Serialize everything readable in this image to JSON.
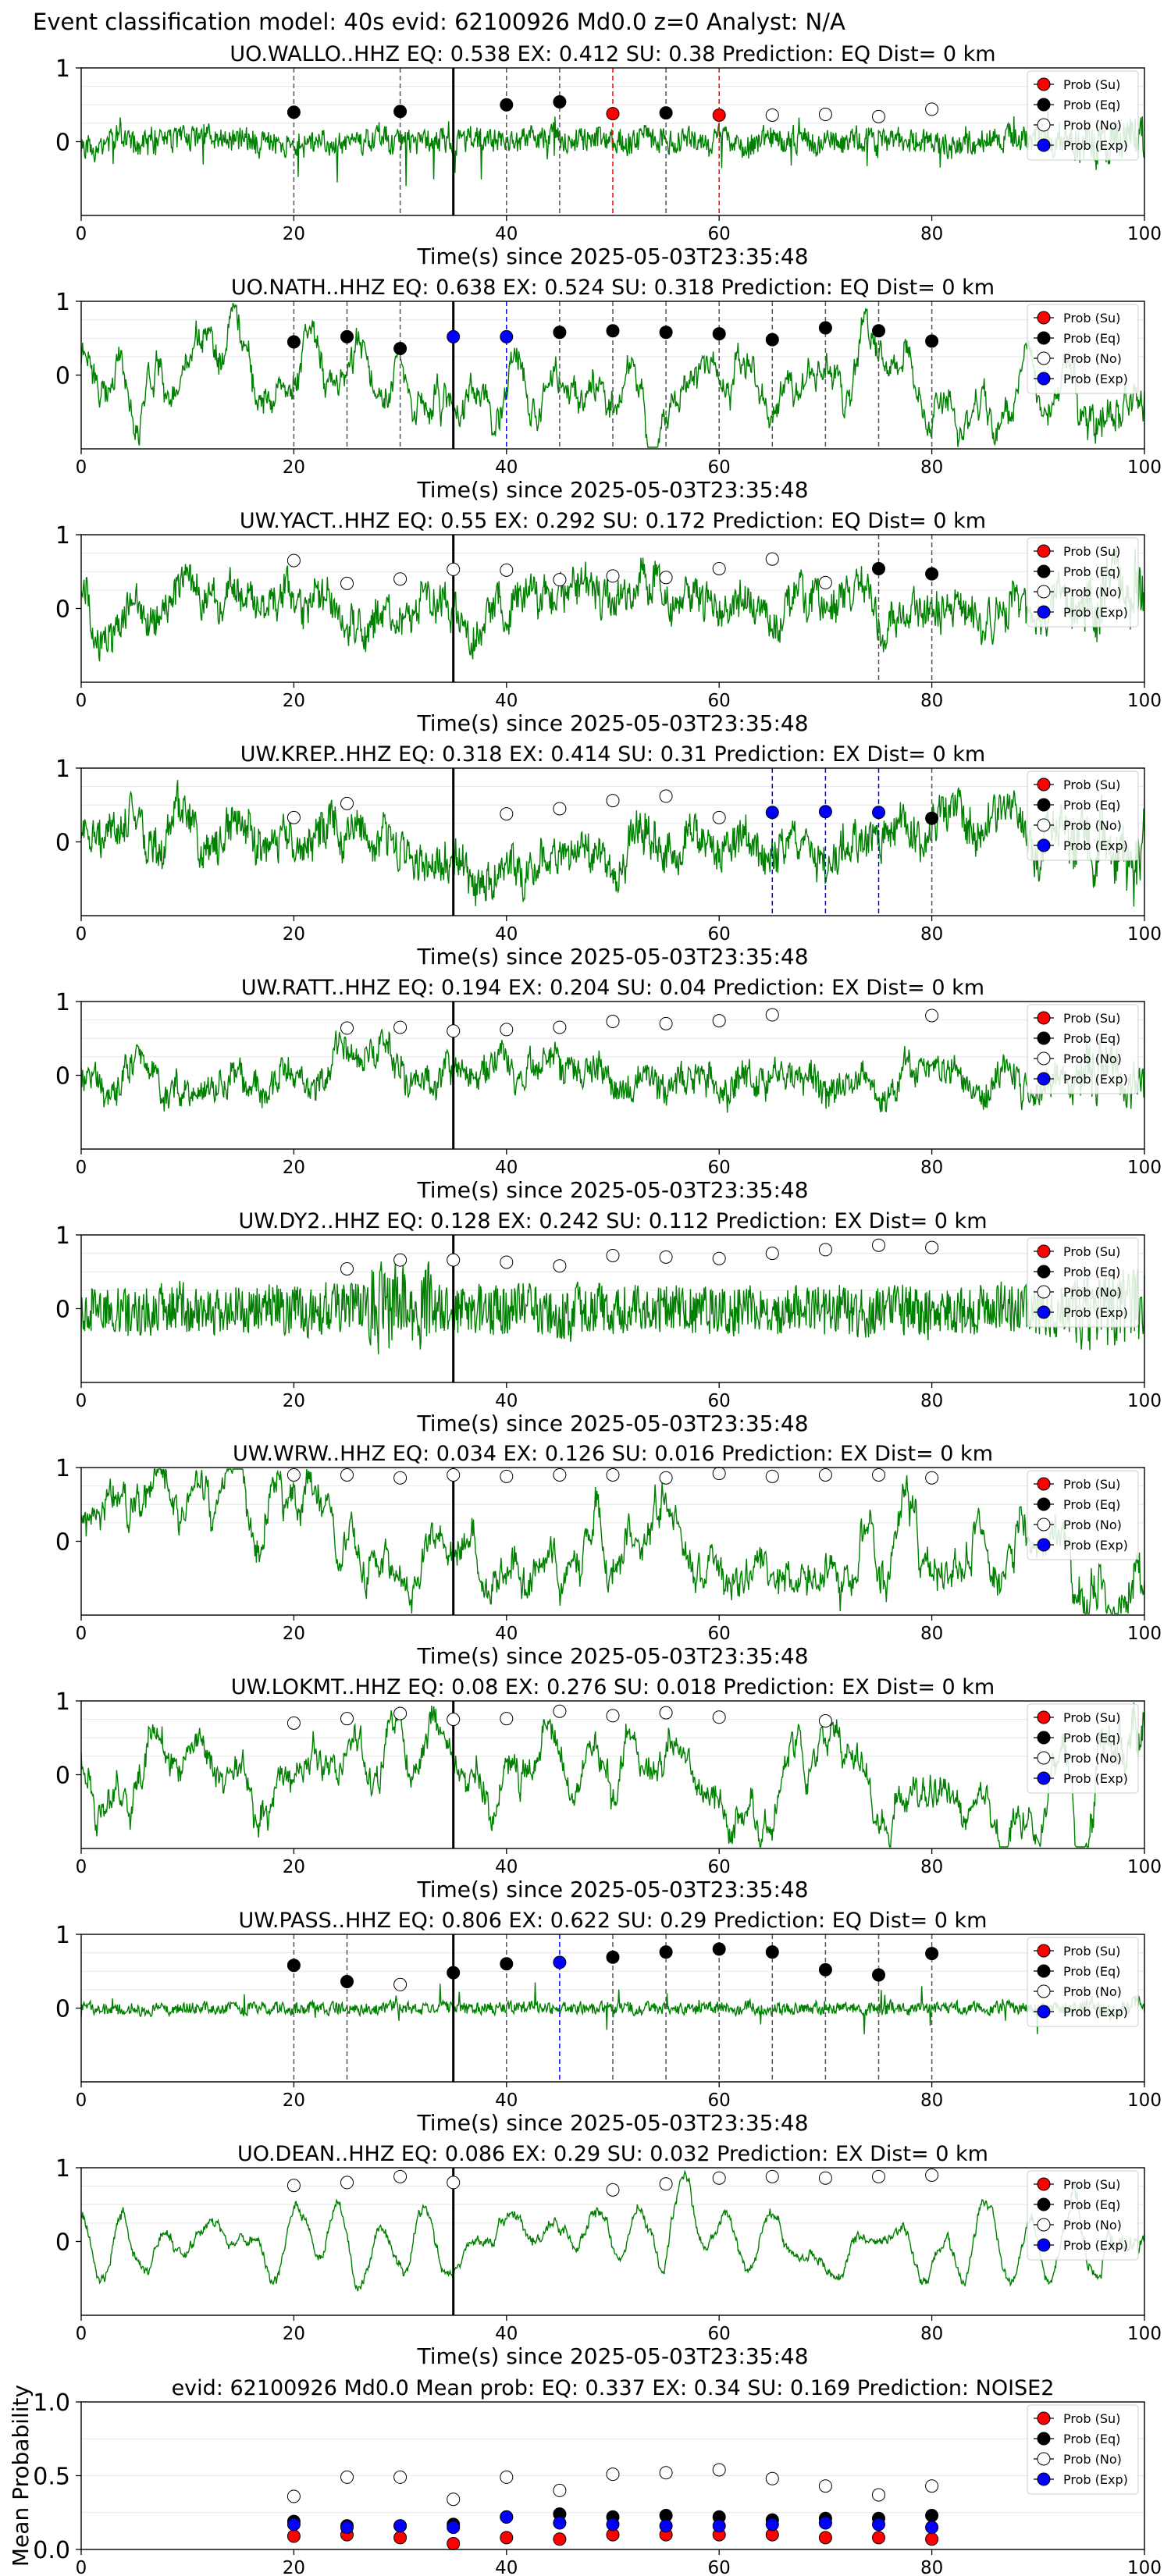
{
  "figure": {
    "suptitle": "Event classification model: 40s evid: 62100926 Md0.0 z=0 Analyst: N/A",
    "xlabel": "Time(s) since 2025-05-03T23:35:48",
    "legend": [
      "Prob (Su)",
      "Prob (Eq)",
      "Prob (No)",
      "Prob (Exp)"
    ],
    "colors": {
      "waveform": "#008000",
      "su": "#ff0000",
      "eq": "#000000",
      "no": "#ffffff",
      "exp": "#0000ff",
      "pick_line": "#000000",
      "eq_dash": "#555555",
      "su_dash": "#ff0000",
      "exp_dash": "#0000ff"
    }
  },
  "chart_data": [
    {
      "type": "line",
      "title": "UO.WALLO..HHZ   EQ: 0.538  EX: 0.412  SU: 0.38   Prediction: EQ    Dist= 0 km",
      "xlim": [
        0,
        100
      ],
      "ylim": [
        -1,
        1
      ],
      "xticks": [
        0,
        20,
        40,
        60,
        80,
        100
      ],
      "yticks": [
        0,
        1
      ],
      "pick_time": 35,
      "waveform": {
        "seed": 11,
        "style": "impulsive",
        "amp": 0.32
      },
      "markers": [
        {
          "t": 20,
          "p": 0.4,
          "cls": "eq"
        },
        {
          "t": 30,
          "p": 0.41,
          "cls": "eq"
        },
        {
          "t": 40,
          "p": 0.5,
          "cls": "eq"
        },
        {
          "t": 45,
          "p": 0.54,
          "cls": "eq"
        },
        {
          "t": 50,
          "p": 0.38,
          "cls": "su"
        },
        {
          "t": 55,
          "p": 0.39,
          "cls": "eq"
        },
        {
          "t": 60,
          "p": 0.36,
          "cls": "su"
        },
        {
          "t": 65,
          "p": 0.36,
          "cls": "no"
        },
        {
          "t": 70,
          "p": 0.37,
          "cls": "no"
        },
        {
          "t": 75,
          "p": 0.34,
          "cls": "no"
        },
        {
          "t": 80,
          "p": 0.44,
          "cls": "no"
        }
      ]
    },
    {
      "type": "line",
      "title": "UO.NATH..HHZ   EQ: 0.638  EX: 0.524  SU: 0.318   Prediction: EQ    Dist= 0 km",
      "xlim": [
        0,
        100
      ],
      "ylim": [
        -1,
        1
      ],
      "xticks": [
        0,
        20,
        40,
        60,
        80,
        100
      ],
      "yticks": [
        0,
        1
      ],
      "pick_time": 35,
      "waveform": {
        "seed": 22,
        "style": "wavy",
        "amp": 0.55
      },
      "markers": [
        {
          "t": 20,
          "p": 0.45,
          "cls": "eq"
        },
        {
          "t": 25,
          "p": 0.52,
          "cls": "eq"
        },
        {
          "t": 30,
          "p": 0.36,
          "cls": "eq"
        },
        {
          "t": 35,
          "p": 0.52,
          "cls": "exp"
        },
        {
          "t": 40,
          "p": 0.52,
          "cls": "exp"
        },
        {
          "t": 45,
          "p": 0.58,
          "cls": "eq"
        },
        {
          "t": 50,
          "p": 0.6,
          "cls": "eq"
        },
        {
          "t": 55,
          "p": 0.58,
          "cls": "eq"
        },
        {
          "t": 60,
          "p": 0.56,
          "cls": "eq"
        },
        {
          "t": 65,
          "p": 0.48,
          "cls": "eq"
        },
        {
          "t": 70,
          "p": 0.64,
          "cls": "eq"
        },
        {
          "t": 75,
          "p": 0.6,
          "cls": "eq"
        },
        {
          "t": 80,
          "p": 0.46,
          "cls": "eq"
        }
      ]
    },
    {
      "type": "line",
      "title": "UW.YACT..HHZ   EQ: 0.55  EX: 0.292  SU: 0.172   Prediction: EQ    Dist= 0 km",
      "xlim": [
        0,
        100
      ],
      "ylim": [
        -1,
        1
      ],
      "xticks": [
        0,
        20,
        40,
        60,
        80,
        100
      ],
      "yticks": [
        0,
        1
      ],
      "pick_time": 35,
      "waveform": {
        "seed": 33,
        "style": "mixed",
        "amp": 0.5
      },
      "markers": [
        {
          "t": 20,
          "p": 0.65,
          "cls": "no"
        },
        {
          "t": 25,
          "p": 0.34,
          "cls": "no"
        },
        {
          "t": 30,
          "p": 0.4,
          "cls": "no"
        },
        {
          "t": 35,
          "p": 0.53,
          "cls": "no"
        },
        {
          "t": 40,
          "p": 0.52,
          "cls": "no"
        },
        {
          "t": 45,
          "p": 0.39,
          "cls": "no"
        },
        {
          "t": 50,
          "p": 0.44,
          "cls": "no"
        },
        {
          "t": 55,
          "p": 0.42,
          "cls": "no"
        },
        {
          "t": 60,
          "p": 0.54,
          "cls": "no"
        },
        {
          "t": 65,
          "p": 0.67,
          "cls": "no"
        },
        {
          "t": 70,
          "p": 0.35,
          "cls": "no"
        },
        {
          "t": 75,
          "p": 0.54,
          "cls": "eq"
        },
        {
          "t": 80,
          "p": 0.47,
          "cls": "eq"
        }
      ]
    },
    {
      "type": "line",
      "title": "UW.KREP..HHZ   EQ: 0.318  EX: 0.414  SU: 0.31   Prediction: EX    Dist= 0 km",
      "xlim": [
        0,
        100
      ],
      "ylim": [
        -1,
        1
      ],
      "xticks": [
        0,
        20,
        40,
        60,
        80,
        100
      ],
      "yticks": [
        0,
        1
      ],
      "pick_time": 35,
      "waveform": {
        "seed": 44,
        "style": "mixed",
        "amp": 0.55
      },
      "markers": [
        {
          "t": 20,
          "p": 0.33,
          "cls": "no"
        },
        {
          "t": 25,
          "p": 0.52,
          "cls": "no"
        },
        {
          "t": 40,
          "p": 0.38,
          "cls": "no"
        },
        {
          "t": 45,
          "p": 0.45,
          "cls": "no"
        },
        {
          "t": 50,
          "p": 0.56,
          "cls": "no"
        },
        {
          "t": 55,
          "p": 0.62,
          "cls": "no"
        },
        {
          "t": 60,
          "p": 0.33,
          "cls": "no"
        },
        {
          "t": 65,
          "p": 0.4,
          "cls": "exp"
        },
        {
          "t": 70,
          "p": 0.41,
          "cls": "exp"
        },
        {
          "t": 75,
          "p": 0.4,
          "cls": "exp"
        },
        {
          "t": 80,
          "p": 0.32,
          "cls": "eq"
        }
      ]
    },
    {
      "type": "line",
      "title": "UW.RATT..HHZ   EQ: 0.194  EX: 0.204  SU: 0.04   Prediction: EX    Dist= 0 km",
      "xlim": [
        0,
        100
      ],
      "ylim": [
        -1,
        1
      ],
      "xticks": [
        0,
        20,
        40,
        60,
        80,
        100
      ],
      "yticks": [
        0,
        1
      ],
      "pick_time": 35,
      "waveform": {
        "seed": 55,
        "style": "mixed",
        "amp": 0.4
      },
      "markers": [
        {
          "t": 25,
          "p": 0.64,
          "cls": "no"
        },
        {
          "t": 30,
          "p": 0.65,
          "cls": "no"
        },
        {
          "t": 35,
          "p": 0.6,
          "cls": "no"
        },
        {
          "t": 40,
          "p": 0.62,
          "cls": "no"
        },
        {
          "t": 45,
          "p": 0.65,
          "cls": "no"
        },
        {
          "t": 50,
          "p": 0.73,
          "cls": "no"
        },
        {
          "t": 55,
          "p": 0.7,
          "cls": "no"
        },
        {
          "t": 60,
          "p": 0.74,
          "cls": "no"
        },
        {
          "t": 65,
          "p": 0.82,
          "cls": "no"
        },
        {
          "t": 80,
          "p": 0.81,
          "cls": "no"
        }
      ]
    },
    {
      "type": "line",
      "title": "UW.DY2..HHZ   EQ: 0.128  EX: 0.242  SU: 0.112   Prediction: EX    Dist= 0 km",
      "xlim": [
        0,
        100
      ],
      "ylim": [
        -1,
        1
      ],
      "xticks": [
        0,
        20,
        40,
        60,
        80,
        100
      ],
      "yticks": [
        0,
        1
      ],
      "pick_time": 35,
      "waveform": {
        "seed": 66,
        "style": "noisy",
        "amp": 0.42
      },
      "markers": [
        {
          "t": 25,
          "p": 0.54,
          "cls": "no"
        },
        {
          "t": 30,
          "p": 0.66,
          "cls": "no"
        },
        {
          "t": 35,
          "p": 0.66,
          "cls": "no"
        },
        {
          "t": 40,
          "p": 0.63,
          "cls": "no"
        },
        {
          "t": 45,
          "p": 0.58,
          "cls": "no"
        },
        {
          "t": 50,
          "p": 0.72,
          "cls": "no"
        },
        {
          "t": 55,
          "p": 0.7,
          "cls": "no"
        },
        {
          "t": 60,
          "p": 0.68,
          "cls": "no"
        },
        {
          "t": 65,
          "p": 0.75,
          "cls": "no"
        },
        {
          "t": 70,
          "p": 0.8,
          "cls": "no"
        },
        {
          "t": 75,
          "p": 0.86,
          "cls": "no"
        },
        {
          "t": 80,
          "p": 0.83,
          "cls": "no"
        }
      ]
    },
    {
      "type": "line",
      "title": "UW.WRW..HHZ   EQ: 0.034  EX: 0.126  SU: 0.016   Prediction: EX    Dist= 0 km",
      "xlim": [
        0,
        100
      ],
      "ylim": [
        -1,
        1
      ],
      "xticks": [
        0,
        20,
        40,
        60,
        80,
        100
      ],
      "yticks": [
        0,
        1
      ],
      "pick_time": 35,
      "waveform": {
        "seed": 77,
        "style": "wavy",
        "amp": 0.62
      },
      "markers": [
        {
          "t": 20,
          "p": 0.9,
          "cls": "no"
        },
        {
          "t": 25,
          "p": 0.9,
          "cls": "no"
        },
        {
          "t": 30,
          "p": 0.86,
          "cls": "no"
        },
        {
          "t": 35,
          "p": 0.9,
          "cls": "no"
        },
        {
          "t": 40,
          "p": 0.88,
          "cls": "no"
        },
        {
          "t": 45,
          "p": 0.9,
          "cls": "no"
        },
        {
          "t": 50,
          "p": 0.9,
          "cls": "no"
        },
        {
          "t": 55,
          "p": 0.86,
          "cls": "no"
        },
        {
          "t": 60,
          "p": 0.92,
          "cls": "no"
        },
        {
          "t": 65,
          "p": 0.88,
          "cls": "no"
        },
        {
          "t": 70,
          "p": 0.9,
          "cls": "no"
        },
        {
          "t": 75,
          "p": 0.9,
          "cls": "no"
        },
        {
          "t": 80,
          "p": 0.86,
          "cls": "no"
        }
      ]
    },
    {
      "type": "line",
      "title": "UW.LOKMT..HHZ   EQ: 0.08  EX: 0.276  SU: 0.018   Prediction: EX    Dist= 0 km",
      "xlim": [
        0,
        100
      ],
      "ylim": [
        -1,
        1
      ],
      "xticks": [
        0,
        20,
        40,
        60,
        80,
        100
      ],
      "yticks": [
        0,
        1
      ],
      "pick_time": 35,
      "waveform": {
        "seed": 88,
        "style": "wavy",
        "amp": 0.55
      },
      "markers": [
        {
          "t": 20,
          "p": 0.7,
          "cls": "no"
        },
        {
          "t": 25,
          "p": 0.76,
          "cls": "no"
        },
        {
          "t": 30,
          "p": 0.83,
          "cls": "no"
        },
        {
          "t": 35,
          "p": 0.75,
          "cls": "no"
        },
        {
          "t": 40,
          "p": 0.76,
          "cls": "no"
        },
        {
          "t": 45,
          "p": 0.86,
          "cls": "no"
        },
        {
          "t": 50,
          "p": 0.8,
          "cls": "no"
        },
        {
          "t": 55,
          "p": 0.84,
          "cls": "no"
        },
        {
          "t": 60,
          "p": 0.78,
          "cls": "no"
        },
        {
          "t": 70,
          "p": 0.73,
          "cls": "no"
        }
      ]
    },
    {
      "type": "line",
      "title": "UW.PASS..HHZ   EQ: 0.806  EX: 0.622  SU: 0.29   Prediction: EQ    Dist= 0 km",
      "xlim": [
        0,
        100
      ],
      "ylim": [
        -1,
        1
      ],
      "xticks": [
        0,
        20,
        40,
        60,
        80,
        100
      ],
      "yticks": [
        0,
        1
      ],
      "pick_time": 35,
      "waveform": {
        "seed": 99,
        "style": "quiet",
        "amp": 0.16
      },
      "markers": [
        {
          "t": 20,
          "p": 0.58,
          "cls": "eq"
        },
        {
          "t": 25,
          "p": 0.36,
          "cls": "eq"
        },
        {
          "t": 30,
          "p": 0.32,
          "cls": "no"
        },
        {
          "t": 35,
          "p": 0.48,
          "cls": "eq"
        },
        {
          "t": 40,
          "p": 0.6,
          "cls": "eq"
        },
        {
          "t": 45,
          "p": 0.62,
          "cls": "exp"
        },
        {
          "t": 50,
          "p": 0.69,
          "cls": "eq"
        },
        {
          "t": 55,
          "p": 0.76,
          "cls": "eq"
        },
        {
          "t": 60,
          "p": 0.8,
          "cls": "eq"
        },
        {
          "t": 65,
          "p": 0.76,
          "cls": "eq"
        },
        {
          "t": 70,
          "p": 0.52,
          "cls": "eq"
        },
        {
          "t": 75,
          "p": 0.45,
          "cls": "eq"
        },
        {
          "t": 80,
          "p": 0.74,
          "cls": "eq"
        }
      ]
    },
    {
      "type": "line",
      "title": "UO.DEAN..HHZ   EQ: 0.086  EX: 0.29  SU: 0.032   Prediction: EX    Dist= 0 km",
      "xlim": [
        0,
        100
      ],
      "ylim": [
        -1,
        1
      ],
      "xticks": [
        0,
        20,
        40,
        60,
        80,
        100
      ],
      "yticks": [
        0,
        1
      ],
      "pick_time": 35,
      "waveform": {
        "seed": 111,
        "style": "smooth",
        "amp": 0.55
      },
      "markers": [
        {
          "t": 20,
          "p": 0.76,
          "cls": "no"
        },
        {
          "t": 25,
          "p": 0.8,
          "cls": "no"
        },
        {
          "t": 30,
          "p": 0.88,
          "cls": "no"
        },
        {
          "t": 35,
          "p": 0.8,
          "cls": "no"
        },
        {
          "t": 50,
          "p": 0.7,
          "cls": "no"
        },
        {
          "t": 55,
          "p": 0.78,
          "cls": "no"
        },
        {
          "t": 60,
          "p": 0.86,
          "cls": "no"
        },
        {
          "t": 65,
          "p": 0.88,
          "cls": "no"
        },
        {
          "t": 70,
          "p": 0.86,
          "cls": "no"
        },
        {
          "t": 75,
          "p": 0.88,
          "cls": "no"
        },
        {
          "t": 80,
          "p": 0.9,
          "cls": "no"
        }
      ]
    },
    {
      "type": "scatter",
      "title": "evid: 62100926   Md0.0   Mean prob:   EQ: 0.337  EX: 0.34  SU: 0.169   Prediction: NOISE2",
      "ylabel": "Mean Probability",
      "xlim": [
        0,
        100
      ],
      "ylim": [
        0,
        1
      ],
      "xticks": [
        0,
        20,
        40,
        60,
        80,
        100
      ],
      "yticks": [
        0,
        0.5,
        1
      ],
      "ytick_labels": [
        "0.0",
        "0.5",
        "1.0"
      ],
      "x": [
        20,
        25,
        30,
        35,
        40,
        45,
        50,
        55,
        60,
        65,
        70,
        75,
        80
      ],
      "series": [
        {
          "name": "Prob (Su)",
          "cls": "su",
          "values": [
            0.09,
            0.1,
            0.08,
            0.04,
            0.08,
            0.07,
            0.1,
            0.1,
            0.1,
            0.1,
            0.08,
            0.08,
            0.07
          ]
        },
        {
          "name": "Prob (Eq)",
          "cls": "eq",
          "values": [
            0.19,
            0.16,
            0.16,
            0.17,
            0.22,
            0.24,
            0.22,
            0.23,
            0.22,
            0.2,
            0.21,
            0.21,
            0.23
          ]
        },
        {
          "name": "Prob (No)",
          "cls": "no",
          "values": [
            0.36,
            0.49,
            0.49,
            0.34,
            0.49,
            0.4,
            0.51,
            0.52,
            0.54,
            0.48,
            0.43,
            0.37,
            0.43
          ]
        },
        {
          "name": "Prob (Exp)",
          "cls": "exp",
          "values": [
            0.17,
            0.15,
            0.16,
            0.15,
            0.22,
            0.18,
            0.17,
            0.16,
            0.16,
            0.17,
            0.18,
            0.17,
            0.15
          ]
        }
      ]
    }
  ]
}
